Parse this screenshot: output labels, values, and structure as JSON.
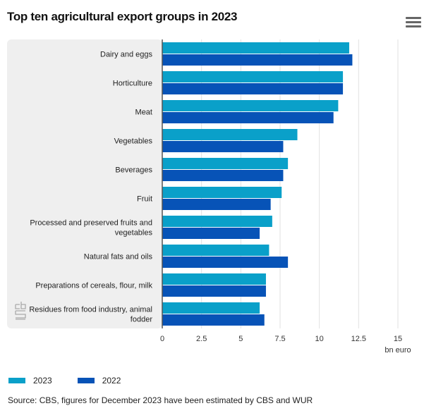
{
  "header": {
    "title": "Top ten agricultural export groups in 2023",
    "menu_icon": "hamburger-menu-icon"
  },
  "chart_data": {
    "type": "bar",
    "orientation": "horizontal",
    "title": "Top ten agricultural export groups in 2023",
    "xlabel": "bn euro",
    "ylabel": "",
    "xlim": [
      0,
      15
    ],
    "xticks": [
      "0",
      "2.5",
      "5",
      "7.5",
      "10",
      "12.5",
      "15"
    ],
    "xtick_values": [
      0,
      2.5,
      5,
      7.5,
      10,
      12.5,
      15
    ],
    "grid": true,
    "legend_position": "bottom-left",
    "categories": [
      "Dairy and eggs",
      "Horticulture",
      "Meat",
      "Vegetables",
      "Beverages",
      "Fruit",
      "Processed and preserved fruits and vegetables",
      "Natural fats and oils",
      "Preparations of cereals, flour, milk",
      "Residues from food industry, animal fodder"
    ],
    "category_lines": [
      [
        "Dairy and eggs"
      ],
      [
        "Horticulture"
      ],
      [
        "Meat"
      ],
      [
        "Vegetables"
      ],
      [
        "Beverages"
      ],
      [
        "Fruit"
      ],
      [
        "Processed and preserved fruits and",
        "vegetables"
      ],
      [
        "Natural fats and oils"
      ],
      [
        "Preparations of cereals, flour, milk"
      ],
      [
        "Residues from food industry, animal",
        "fodder"
      ]
    ],
    "series": [
      {
        "name": "2023",
        "color": "#0aa0c9",
        "values": [
          11.9,
          11.5,
          11.2,
          8.6,
          8.0,
          7.6,
          7.0,
          6.8,
          6.6,
          6.2
        ]
      },
      {
        "name": "2022",
        "color": "#0753b7",
        "values": [
          12.1,
          11.5,
          10.9,
          7.7,
          7.7,
          6.9,
          6.2,
          8.0,
          6.6,
          6.5
        ]
      }
    ]
  },
  "legend": {
    "items": [
      {
        "label": "2023",
        "color": "#0aa0c9"
      },
      {
        "label": "2022",
        "color": "#0753b7"
      }
    ]
  },
  "footer": {
    "source": "Source: CBS, figures for December 2023 have been estimated by CBS and WUR",
    "logo": "cbs-logo-icon"
  }
}
